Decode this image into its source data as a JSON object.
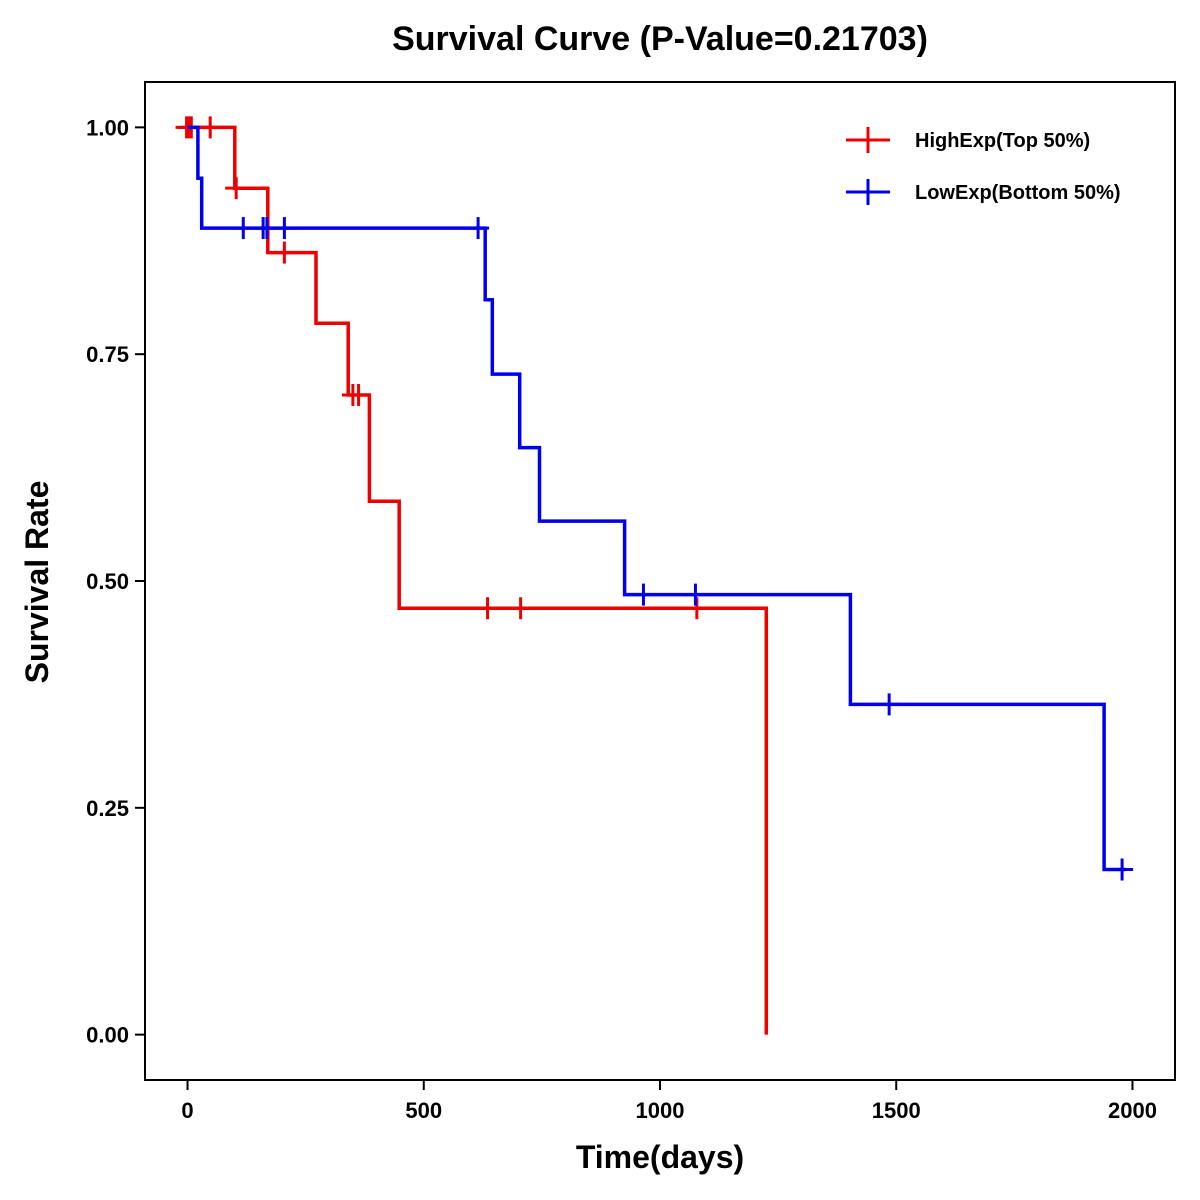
{
  "chart_data": {
    "type": "line",
    "subtype": "kaplan-meier-step",
    "title": "Survival Curve (P-Value=0.21703)",
    "xlabel": "Time(days)",
    "ylabel": "Survival Rate",
    "xlim": [
      -90,
      2090
    ],
    "ylim": [
      -0.05,
      1.05
    ],
    "x_ticks": [
      0,
      500,
      1000,
      1500,
      2000
    ],
    "x_tick_labels": [
      "0",
      "500",
      "1000",
      "1500",
      "2000"
    ],
    "y_ticks": [
      0,
      0.25,
      0.5,
      0.75,
      1.0
    ],
    "y_tick_labels": [
      "0.00",
      "0.25",
      "0.50",
      "0.75",
      "1.00"
    ],
    "legend_position": "top-right",
    "series": [
      {
        "name": "HighExp(Top 50%)",
        "color": "#ee0000",
        "steps": [
          [
            0,
            1.0
          ],
          [
            100,
            0.933
          ],
          [
            170,
            0.862
          ],
          [
            272,
            0.784
          ],
          [
            340,
            0.705
          ],
          [
            385,
            0.588
          ],
          [
            448,
            0.47
          ],
          [
            1225,
            0.0
          ]
        ],
        "end_x": 1225,
        "censored": [
          [
            -2,
            1.0
          ],
          [
            3,
            1.0
          ],
          [
            8,
            1.0
          ],
          [
            48,
            1.0
          ],
          [
            103,
            0.933
          ],
          [
            205,
            0.862
          ],
          [
            350,
            0.705
          ],
          [
            362,
            0.705
          ],
          [
            635,
            0.47
          ],
          [
            705,
            0.47
          ],
          [
            1078,
            0.47
          ]
        ]
      },
      {
        "name": "LowExp(Bottom 50%)",
        "color": "#0000ee",
        "steps": [
          [
            0,
            1.0
          ],
          [
            22,
            0.944
          ],
          [
            30,
            0.889
          ],
          [
            630,
            0.81
          ],
          [
            645,
            0.728
          ],
          [
            703,
            0.647
          ],
          [
            745,
            0.566
          ],
          [
            925,
            0.485
          ],
          [
            1403,
            0.364
          ],
          [
            1940,
            0.182
          ]
        ],
        "end_x": 1985,
        "censored": [
          [
            118,
            0.889
          ],
          [
            160,
            0.889
          ],
          [
            168,
            0.889
          ],
          [
            205,
            0.889
          ],
          [
            615,
            0.889
          ],
          [
            965,
            0.485
          ],
          [
            1075,
            0.485
          ],
          [
            1485,
            0.364
          ],
          [
            1978,
            0.182
          ]
        ]
      }
    ]
  }
}
